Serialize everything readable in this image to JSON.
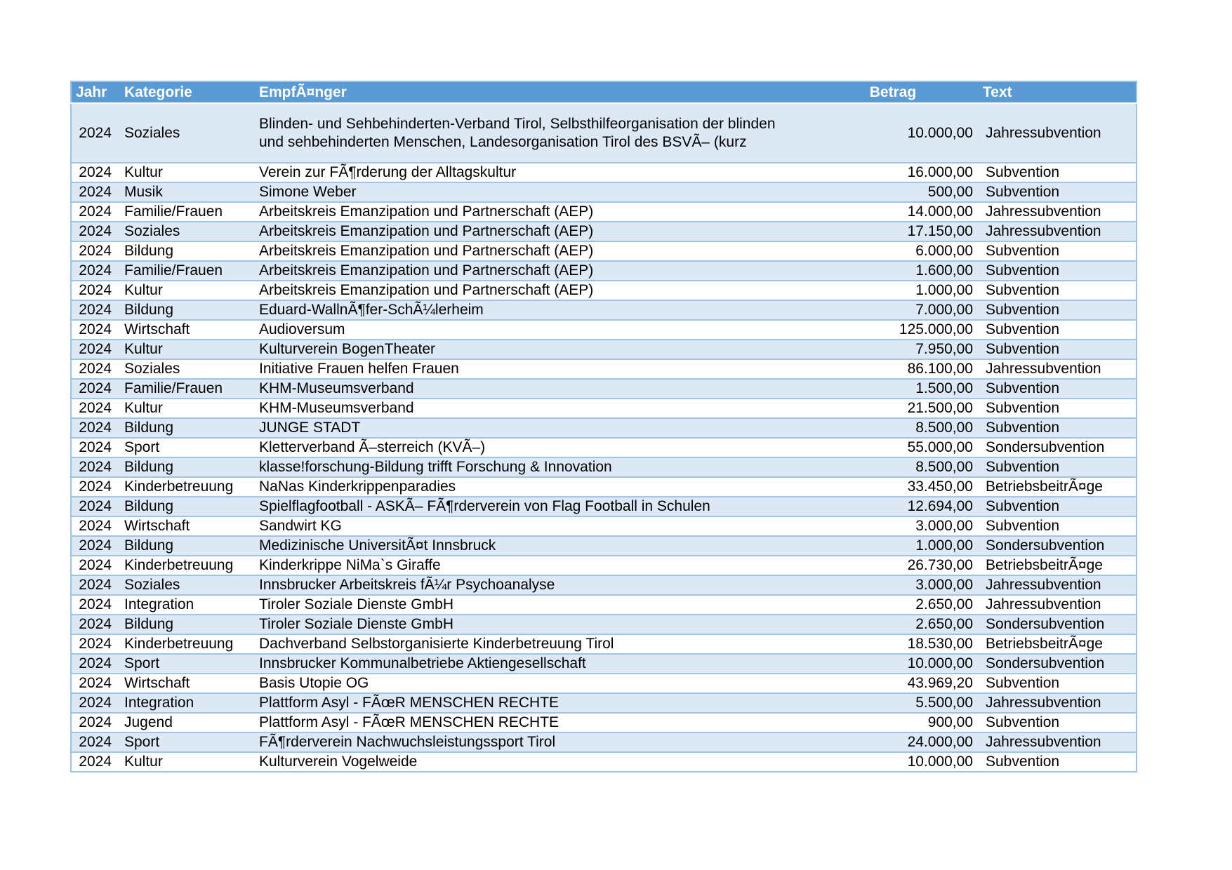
{
  "table": {
    "colors": {
      "header_bg": "#5B9BD5",
      "header_text": "#FFFFFF",
      "row_alt_bg": "#DCE9F5",
      "row_bg": "#FFFFFF",
      "border": "#9DC3E6"
    },
    "columns": [
      {
        "key": "jahr",
        "label": "Jahr"
      },
      {
        "key": "kategorie",
        "label": "Kategorie"
      },
      {
        "key": "empfaenger",
        "label": "EmpfÃ¤nger"
      },
      {
        "key": "betrag",
        "label": "Betrag"
      },
      {
        "key": "text",
        "label": "Text"
      }
    ],
    "rows": [
      {
        "jahr": "2024",
        "kategorie": "Soziales",
        "empfaenger": "Blinden- und Sehbehinderten-Verband Tirol, Selbsthilfeorganisation der blinden und sehbehinderten Menschen, Landesorganisation Tirol des BSVÃ– (kurz",
        "betrag": "10.000,00",
        "text": "Jahressubvention"
      },
      {
        "jahr": "2024",
        "kategorie": "Kultur",
        "empfaenger": "Verein zur FÃ¶rderung der Alltagskultur",
        "betrag": "16.000,00",
        "text": "Subvention"
      },
      {
        "jahr": "2024",
        "kategorie": "Musik",
        "empfaenger": "Simone Weber",
        "betrag": "500,00",
        "text": "Subvention"
      },
      {
        "jahr": "2024",
        "kategorie": "Familie/Frauen",
        "empfaenger": "Arbeitskreis Emanzipation und Partnerschaft (AEP)",
        "betrag": "14.000,00",
        "text": "Jahressubvention"
      },
      {
        "jahr": "2024",
        "kategorie": "Soziales",
        "empfaenger": "Arbeitskreis Emanzipation und Partnerschaft (AEP)",
        "betrag": "17.150,00",
        "text": "Jahressubvention"
      },
      {
        "jahr": "2024",
        "kategorie": "Bildung",
        "empfaenger": "Arbeitskreis Emanzipation und Partnerschaft (AEP)",
        "betrag": "6.000,00",
        "text": "Subvention"
      },
      {
        "jahr": "2024",
        "kategorie": "Familie/Frauen",
        "empfaenger": "Arbeitskreis Emanzipation und Partnerschaft (AEP)",
        "betrag": "1.600,00",
        "text": "Subvention"
      },
      {
        "jahr": "2024",
        "kategorie": "Kultur",
        "empfaenger": "Arbeitskreis Emanzipation und Partnerschaft (AEP)",
        "betrag": "1.000,00",
        "text": "Subvention"
      },
      {
        "jahr": "2024",
        "kategorie": "Bildung",
        "empfaenger": "Eduard-WallnÃ¶fer-SchÃ¼lerheim",
        "betrag": "7.000,00",
        "text": "Subvention"
      },
      {
        "jahr": "2024",
        "kategorie": "Wirtschaft",
        "empfaenger": "Audioversum",
        "betrag": "125.000,00",
        "text": "Subvention"
      },
      {
        "jahr": "2024",
        "kategorie": "Kultur",
        "empfaenger": "Kulturverein BogenTheater",
        "betrag": "7.950,00",
        "text": "Subvention"
      },
      {
        "jahr": "2024",
        "kategorie": "Soziales",
        "empfaenger": "Initiative Frauen helfen Frauen",
        "betrag": "86.100,00",
        "text": "Jahressubvention"
      },
      {
        "jahr": "2024",
        "kategorie": "Familie/Frauen",
        "empfaenger": "KHM-Museumsverband",
        "betrag": "1.500,00",
        "text": "Subvention"
      },
      {
        "jahr": "2024",
        "kategorie": "Kultur",
        "empfaenger": "KHM-Museumsverband",
        "betrag": "21.500,00",
        "text": "Subvention"
      },
      {
        "jahr": "2024",
        "kategorie": "Bildung",
        "empfaenger": "JUNGE STADT",
        "betrag": "8.500,00",
        "text": "Subvention"
      },
      {
        "jahr": "2024",
        "kategorie": "Sport",
        "empfaenger": "Kletterverband Ã–sterreich (KVÃ–)",
        "betrag": "55.000,00",
        "text": "Sondersubvention"
      },
      {
        "jahr": "2024",
        "kategorie": "Bildung",
        "empfaenger": "klasse!forschung-Bildung trifft Forschung & Innovation",
        "betrag": "8.500,00",
        "text": "Subvention"
      },
      {
        "jahr": "2024",
        "kategorie": "Kinderbetreuung",
        "empfaenger": "NaNas Kinderkrippenparadies",
        "betrag": "33.450,00",
        "text": "BetriebsbeitrÃ¤ge"
      },
      {
        "jahr": "2024",
        "kategorie": "Bildung",
        "empfaenger": "Spielflagfootball - ASKÃ– FÃ¶rderverein von Flag Football in Schulen",
        "betrag": "12.694,00",
        "text": "Subvention"
      },
      {
        "jahr": "2024",
        "kategorie": "Wirtschaft",
        "empfaenger": "Sandwirt KG",
        "betrag": "3.000,00",
        "text": "Subvention"
      },
      {
        "jahr": "2024",
        "kategorie": "Bildung",
        "empfaenger": "Medizinische UniversitÃ¤t Innsbruck",
        "betrag": "1.000,00",
        "text": "Sondersubvention"
      },
      {
        "jahr": "2024",
        "kategorie": "Kinderbetreuung",
        "empfaenger": "Kinderkrippe NiMa`s Giraffe",
        "betrag": "26.730,00",
        "text": "BetriebsbeitrÃ¤ge"
      },
      {
        "jahr": "2024",
        "kategorie": "Soziales",
        "empfaenger": "Innsbrucker Arbeitskreis fÃ¼r Psychoanalyse",
        "betrag": "3.000,00",
        "text": "Jahressubvention"
      },
      {
        "jahr": "2024",
        "kategorie": "Integration",
        "empfaenger": "Tiroler Soziale Dienste GmbH",
        "betrag": "2.650,00",
        "text": "Jahressubvention"
      },
      {
        "jahr": "2024",
        "kategorie": "Bildung",
        "empfaenger": "Tiroler Soziale Dienste GmbH",
        "betrag": "2.650,00",
        "text": "Sondersubvention"
      },
      {
        "jahr": "2024",
        "kategorie": "Kinderbetreuung",
        "empfaenger": "Dachverband Selbstorganisierte Kinderbetreuung Tirol",
        "betrag": "18.530,00",
        "text": "BetriebsbeitrÃ¤ge"
      },
      {
        "jahr": "2024",
        "kategorie": "Sport",
        "empfaenger": "Innsbrucker Kommunalbetriebe Aktiengesellschaft",
        "betrag": "10.000,00",
        "text": "Sondersubvention"
      },
      {
        "jahr": "2024",
        "kategorie": "Wirtschaft",
        "empfaenger": "Basis Utopie OG",
        "betrag": "43.969,20",
        "text": "Subvention"
      },
      {
        "jahr": "2024",
        "kategorie": "Integration",
        "empfaenger": "Plattform Asyl - FÃœR MENSCHEN RECHTE",
        "betrag": "5.500,00",
        "text": "Jahressubvention"
      },
      {
        "jahr": "2024",
        "kategorie": "Jugend",
        "empfaenger": "Plattform Asyl - FÃœR MENSCHEN RECHTE",
        "betrag": "900,00",
        "text": "Subvention"
      },
      {
        "jahr": "2024",
        "kategorie": "Sport",
        "empfaenger": "FÃ¶rderverein Nachwuchsleistungssport Tirol",
        "betrag": "24.000,00",
        "text": "Jahressubvention"
      },
      {
        "jahr": "2024",
        "kategorie": "Kultur",
        "empfaenger": "Kulturverein Vogelweide",
        "betrag": "10.000,00",
        "text": "Subvention"
      }
    ]
  }
}
